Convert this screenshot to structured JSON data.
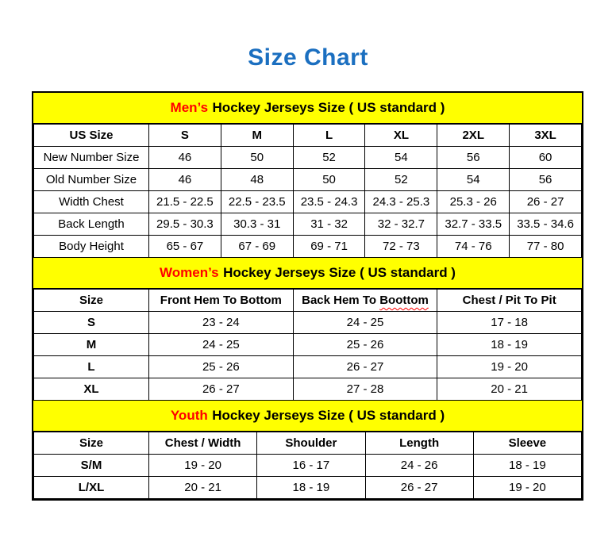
{
  "page_title": "Size Chart",
  "colors": {
    "title_blue": "#1b6fc0",
    "header_yellow": "#ffff00",
    "highlight_red": "#ff0000",
    "border_black": "#000000"
  },
  "chart_data": [
    {
      "type": "table",
      "title_highlight": "Men’s",
      "title_rest": "Hockey Jerseys Size ( US standard )",
      "columns": [
        "US Size",
        "S",
        "M",
        "L",
        "XL",
        "2XL",
        "3XL"
      ],
      "rows": [
        {
          "label": "New Number Size",
          "values": [
            "46",
            "50",
            "52",
            "54",
            "56",
            "60"
          ]
        },
        {
          "label": "Old Number Size",
          "values": [
            "46",
            "48",
            "50",
            "52",
            "54",
            "56"
          ]
        },
        {
          "label": "Width Chest",
          "values": [
            "21.5 - 22.5",
            "22.5 - 23.5",
            "23.5 - 24.3",
            "24.3 - 25.3",
            "25.3 - 26",
            "26 - 27"
          ]
        },
        {
          "label": "Back Length",
          "values": [
            "29.5 - 30.3",
            "30.3 - 31",
            "31 - 32",
            "32 - 32.7",
            "32.7 - 33.5",
            "33.5 - 34.6"
          ]
        },
        {
          "label": "Body Height",
          "values": [
            "65 - 67",
            "67 - 69",
            "69 - 71",
            "72 - 73",
            "74 - 76",
            "77 - 80"
          ]
        }
      ]
    },
    {
      "type": "table",
      "title_highlight": "Women’s",
      "title_rest": "Hockey Jerseys Size ( US standard )",
      "columns": [
        "Size",
        "Front Hem To Bottom",
        {
          "text": "Back Hem To ",
          "squiggle": "Boottom"
        },
        "Chest / Pit To Pit"
      ],
      "rows": [
        {
          "label": "S",
          "values": [
            "23 - 24",
            "24 - 25",
            "17 - 18"
          ]
        },
        {
          "label": "M",
          "values": [
            "24 - 25",
            "25 - 26",
            "18 - 19"
          ]
        },
        {
          "label": "L",
          "values": [
            "25 - 26",
            "26 - 27",
            "19 - 20"
          ]
        },
        {
          "label": "XL",
          "values": [
            "26 - 27",
            "27 - 28",
            "20 - 21"
          ]
        }
      ]
    },
    {
      "type": "table",
      "title_highlight": "Youth",
      "title_rest": "Hockey Jerseys Size ( US standard )",
      "columns": [
        "Size",
        "Chest / Width",
        "Shoulder",
        "Length",
        "Sleeve"
      ],
      "rows": [
        {
          "label": "S/M",
          "values": [
            "19 - 20",
            "16 - 17",
            "24 - 26",
            "18 - 19"
          ]
        },
        {
          "label": "L/XL",
          "values": [
            "20 - 21",
            "18 - 19",
            "26 - 27",
            "19 - 20"
          ]
        }
      ]
    }
  ]
}
